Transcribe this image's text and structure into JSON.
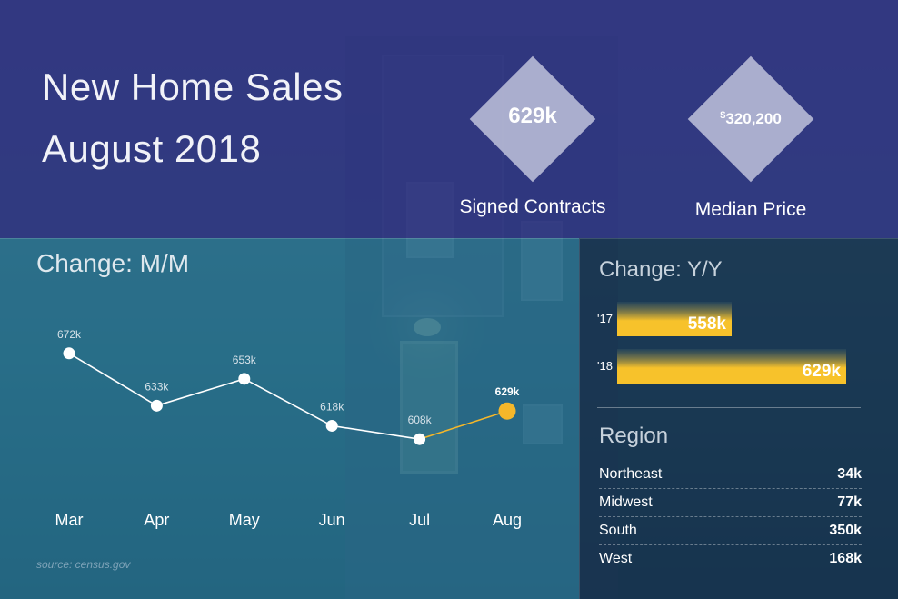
{
  "header": {
    "title_line1": "New Home Sales",
    "title_line2": "August 2018"
  },
  "kpis": [
    {
      "value": "629k",
      "label": "Signed Contracts"
    },
    {
      "value_prefix": "$",
      "value": "320,200",
      "label": "Median Price"
    }
  ],
  "mm_section": {
    "title": "Change: M/M",
    "source": "source: census.gov"
  },
  "yy_section": {
    "title": "Change: Y/Y"
  },
  "region_section": {
    "title": "Region",
    "rows": [
      {
        "name": "Northeast",
        "value": "34k"
      },
      {
        "name": "Midwest",
        "value": "77k"
      },
      {
        "name": "South",
        "value": "350k"
      },
      {
        "name": "West",
        "value": "168k"
      }
    ]
  },
  "colors": {
    "accent": "#f5b72a",
    "line": "#ffffff",
    "bar_gradient_top": "#f7c22b",
    "bar_gradient_bottom": "#2a4a5e"
  },
  "chart_data": [
    {
      "type": "line",
      "title": "Change: M/M",
      "categories": [
        "Mar",
        "Apr",
        "May",
        "Jun",
        "Jul",
        "Aug"
      ],
      "values": [
        672,
        633,
        653,
        618,
        608,
        629
      ],
      "data_labels": [
        "672k",
        "633k",
        "653k",
        "618k",
        "608k",
        "629k"
      ],
      "highlight_index": 5,
      "ylim": [
        600,
        680
      ],
      "grid": false
    },
    {
      "type": "bar",
      "orientation": "horizontal",
      "title": "Change: Y/Y",
      "categories": [
        "'17",
        "'18"
      ],
      "values": [
        558,
        629
      ],
      "data_labels": [
        "558k",
        "629k"
      ]
    }
  ]
}
